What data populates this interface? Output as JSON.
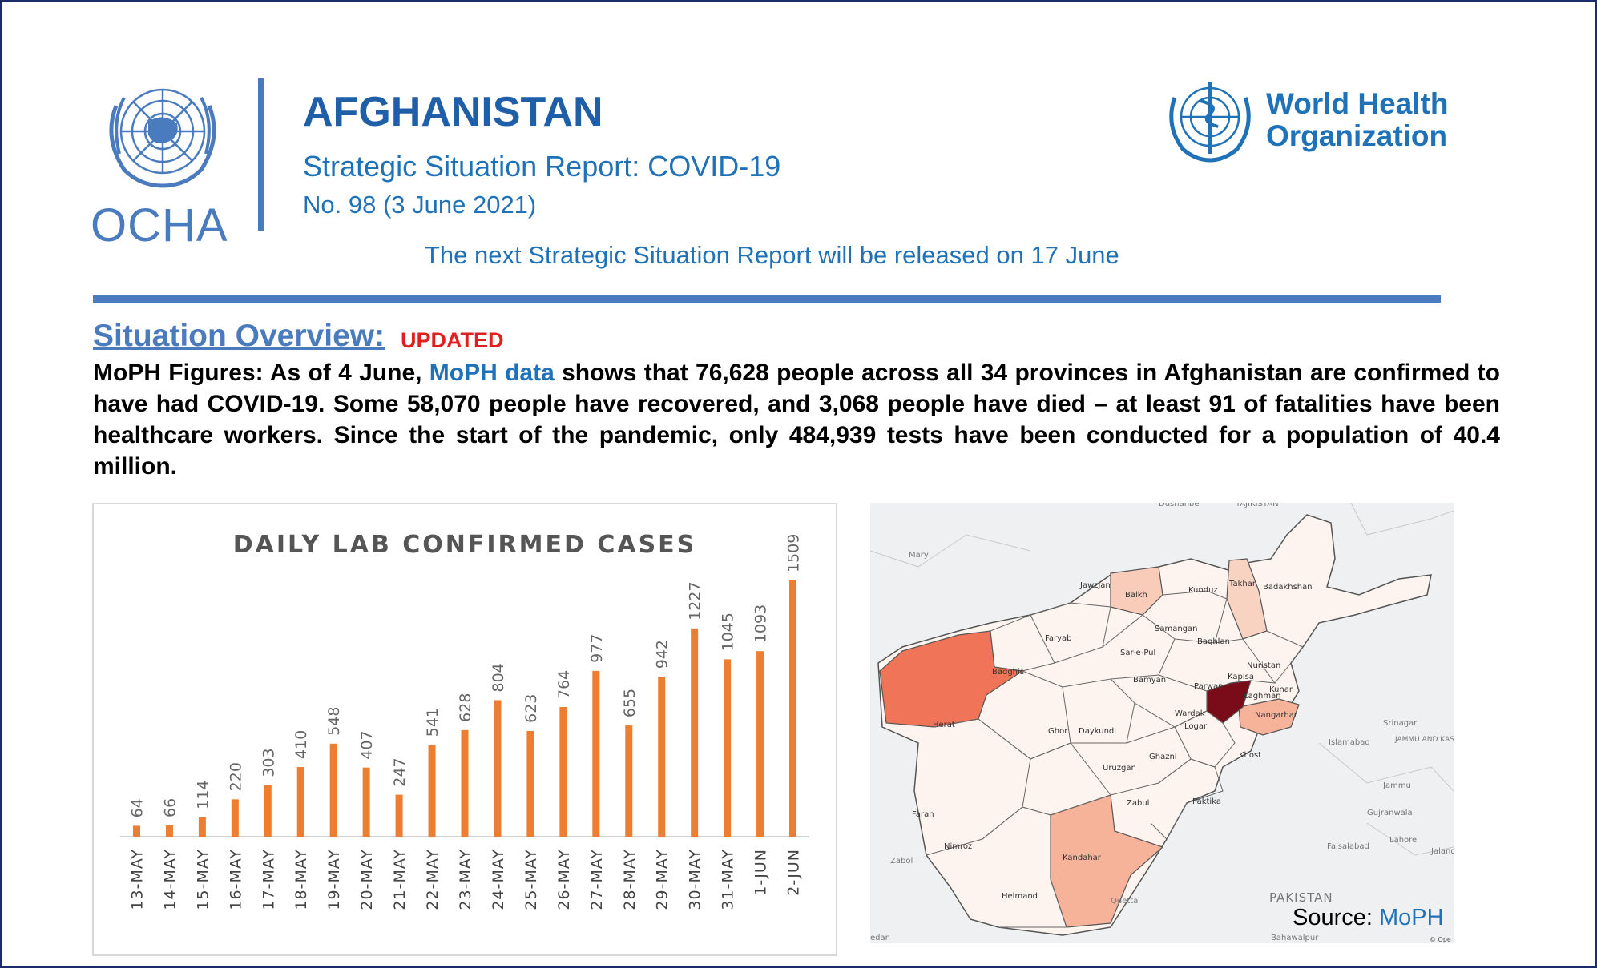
{
  "header": {
    "org_left": "OCHA",
    "title": "AFGHANISTAN",
    "subtitle": "Strategic Situation Report: COVID-19",
    "report_number": "No. 98 (3 June 2021)",
    "next_release": "The next Strategic Situation Report will be released on 17 June",
    "org_right_line1": "World Health",
    "org_right_line2": "Organization",
    "accent_color": "#4a7bbf",
    "logo_left": "un-emblem",
    "logo_right": "who-emblem"
  },
  "overview": {
    "heading": "Situation Overview:",
    "badge": "UPDATED",
    "para_part1": "MoPH Figures: As of 4 June, ",
    "para_link": "MoPH data",
    "para_part2": " shows that 76,628 people across all 34 provinces in Afghanistan are confirmed to have had COVID-19. Some 58,070 people have recovered, and 3,068 people have died – at least 91 of fatalities have been healthcare workers. Since the start of the pandemic, only 484,939 tests have been conducted for a population of 40.4 million."
  },
  "chart_data": {
    "type": "bar",
    "title": "DAILY LAB CONFIRMED CASES",
    "categories": [
      "13-MAY",
      "14-MAY",
      "15-MAY",
      "16-MAY",
      "17-MAY",
      "18-MAY",
      "19-MAY",
      "20-MAY",
      "21-MAY",
      "22-MAY",
      "23-MAY",
      "24-MAY",
      "25-MAY",
      "26-MAY",
      "27-MAY",
      "28-MAY",
      "29-MAY",
      "30-MAY",
      "31-MAY",
      "1-JUN",
      "2-JUN"
    ],
    "values": [
      64,
      66,
      114,
      220,
      303,
      410,
      548,
      407,
      247,
      541,
      628,
      804,
      623,
      764,
      977,
      655,
      942,
      1227,
      1045,
      1093,
      1509
    ],
    "ylim": [
      0,
      1509
    ],
    "bar_color": "#ed7d31",
    "grid": false,
    "data_labels": true
  },
  "map": {
    "source_label": "Source: ",
    "source_link": "MoPH",
    "province_labels": [
      "Jawzjan",
      "Balkh",
      "Kunduz",
      "Takhar",
      "Badakhshan",
      "Faryab",
      "Samangan",
      "Baghlan",
      "Sar-e-Pul",
      "Badghis",
      "Bamyan",
      "Parwan",
      "Kapisa",
      "Nuristan",
      "Kunar",
      "Laghman",
      "Nangarhar",
      "Herat",
      "Ghor",
      "Daykundi",
      "Wardak",
      "Logar",
      "Khost",
      "Paktika",
      "Ghazni",
      "Uruzgan",
      "Zabul",
      "Farah",
      "Nimroz",
      "Helmand",
      "Kandahar"
    ],
    "neighbor_labels": [
      "Dushanbe",
      "TAJIKISTAN",
      "Mary",
      "Srinagar",
      "JAMMU AND KASHMIR",
      "Jammu",
      "Islamabad",
      "Gujranwala",
      "Lahore",
      "Faisalabad",
      "Jaland",
      "PAKISTAN",
      "Zabol",
      "Quetta",
      "Bahawalpur",
      "edan"
    ],
    "attribution": "© Ope",
    "colors": {
      "high": "#7a0c1a",
      "herat": "#f07457",
      "medium": "#f6b39a",
      "low": "#fbe3d8",
      "base": "#fdf4ef"
    }
  }
}
